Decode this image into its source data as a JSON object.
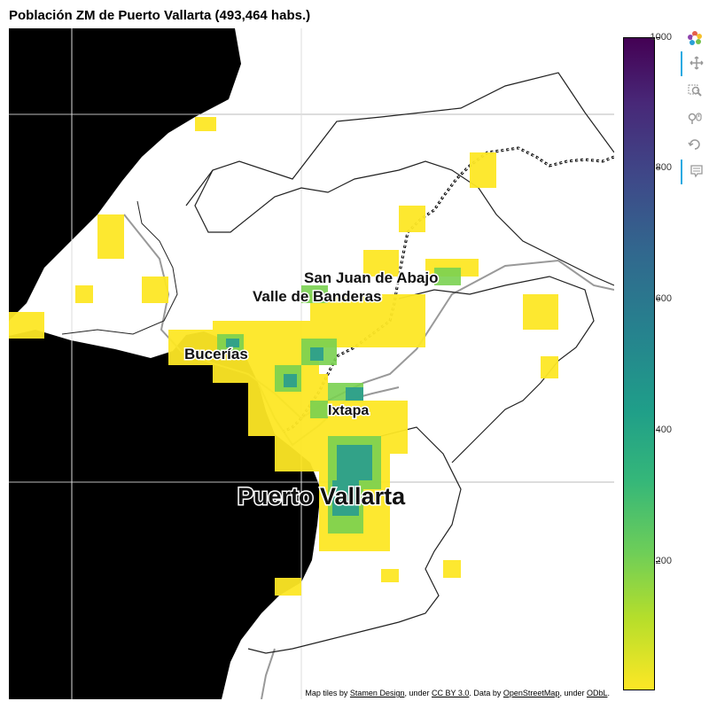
{
  "title": "Población ZM de Puerto Vallarta (493,464 habs.)",
  "map": {
    "labels": {
      "san_juan": "San Juan de Abajo",
      "valle": "Valle de Banderas",
      "bucerias": "Bucerías",
      "ixtapa": "Ixtapa",
      "puerto_vallarta": "Puerto Vallarta"
    },
    "attribution": {
      "prefix": "Map tiles by ",
      "stamen": "Stamen Design",
      "under1": ", under ",
      "cc": "CC BY 3.0",
      "data_by": ". Data by ",
      "osm": "OpenStreetMap",
      "under2": ", under ",
      "odbl": "ODbL",
      "suffix": "."
    }
  },
  "colorbar": {
    "colormap": "viridis",
    "min": 0,
    "max": 1000,
    "ticks": [
      "1000",
      "800",
      "600",
      "400",
      "200"
    ],
    "tick_values": [
      1000,
      800,
      600,
      400,
      200
    ]
  },
  "toolbar": {
    "icons": [
      "bokeh-logo-icon",
      "pan-icon",
      "box-zoom-icon",
      "wheel-zoom-icon",
      "reset-icon",
      "hover-icon"
    ]
  },
  "colors": {
    "water": "#000000",
    "land": "#ffffff",
    "low": "#fde725",
    "mid": "#35b779",
    "high": "#31688e"
  }
}
